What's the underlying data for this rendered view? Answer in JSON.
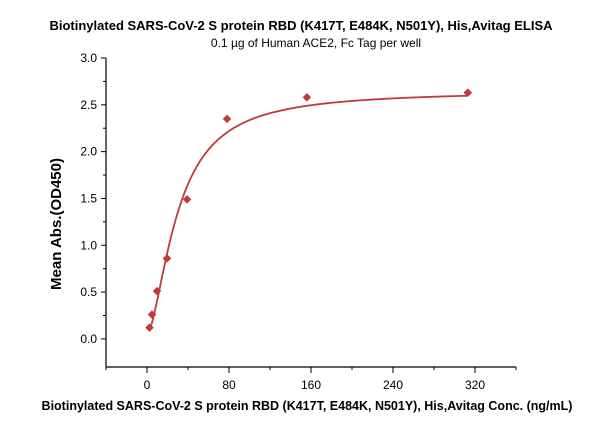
{
  "chart_data": {
    "type": "scatter",
    "title": "Biotinylated SARS-CoV-2 S protein RBD (K417T, E484K, N501Y), His,Avitag ELISA",
    "subtitle": "0.1 µg of Human ACE2, Fc Tag per well",
    "xlabel": "Biotinylated SARS-CoV-2 S protein RBD (K417T, E484K, N501Y), His,Avitag Conc. (ng/mL)",
    "ylabel": "Mean Abs.(OD450)",
    "xlim": [
      -40,
      360
    ],
    "ylim": [
      -0.3,
      3.0
    ],
    "xticks": [
      0,
      80,
      160,
      240,
      320
    ],
    "yticks": [
      0.0,
      0.5,
      1.0,
      1.5,
      2.0,
      2.5,
      3.0
    ],
    "ytick_labels": [
      "0.0",
      "0.5",
      "1.0",
      "1.5",
      "2.0",
      "2.5",
      "3.0"
    ],
    "grid": false,
    "marker_color": "#c0393b",
    "curve_color": "#c0393b",
    "series": [
      {
        "x": [
          2.44,
          4.88,
          9.77,
          19.5,
          39.1,
          78.1,
          156,
          313
        ],
        "y": [
          0.12,
          0.26,
          0.51,
          0.86,
          1.49,
          2.35,
          2.58,
          2.63
        ]
      }
    ],
    "fit_curve": {
      "model": "4PL",
      "bottom": 0.05,
      "top": 2.65,
      "ec50": 30,
      "hill": 1.65
    }
  }
}
